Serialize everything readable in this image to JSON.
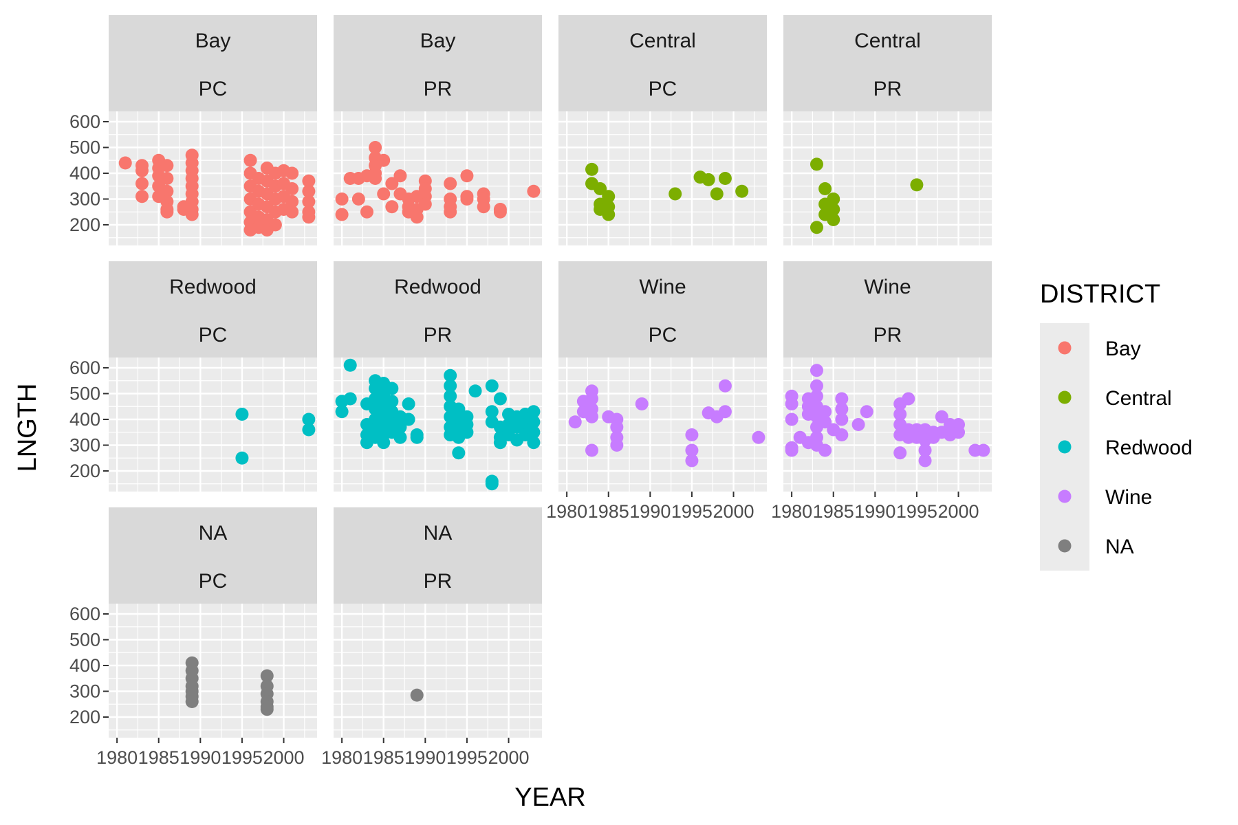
{
  "chart_data": {
    "type": "scatter",
    "facet_layout": "wrap",
    "xlabel": "YEAR",
    "ylabel": "LNGTH",
    "xticks": [
      "1980",
      "1985",
      "1990",
      "1995",
      "2000"
    ],
    "yticks": [
      "200",
      "300",
      "400",
      "500",
      "600"
    ],
    "xlim": [
      1979,
      2004
    ],
    "ylim": [
      120,
      640
    ],
    "grid": true,
    "legend": {
      "title": "DISTRICT",
      "position": "right",
      "entries": [
        {
          "label": "Bay",
          "color": "#F8766D"
        },
        {
          "label": "Central",
          "color": "#7CAE00"
        },
        {
          "label": "Redwood",
          "color": "#00BFC4"
        },
        {
          "label": "Wine",
          "color": "#C77CFF"
        },
        {
          "label": "NA",
          "color": "#7F7F7F"
        }
      ]
    },
    "panels": [
      {
        "district": "Bay",
        "type": "PC",
        "color": "#F8766D",
        "points": [
          [
            1981,
            440
          ],
          [
            1983,
            430
          ],
          [
            1983,
            410
          ],
          [
            1983,
            360
          ],
          [
            1983,
            310
          ],
          [
            1985,
            450
          ],
          [
            1985,
            420
          ],
          [
            1985,
            390
          ],
          [
            1985,
            350
          ],
          [
            1985,
            310
          ],
          [
            1986,
            430
          ],
          [
            1986,
            380
          ],
          [
            1986,
            330
          ],
          [
            1986,
            290
          ],
          [
            1986,
            260
          ],
          [
            1986,
            250
          ],
          [
            1988,
            270
          ],
          [
            1988,
            260
          ],
          [
            1989,
            470
          ],
          [
            1989,
            440
          ],
          [
            1989,
            410
          ],
          [
            1989,
            380
          ],
          [
            1989,
            350
          ],
          [
            1989,
            320
          ],
          [
            1989,
            290
          ],
          [
            1989,
            260
          ],
          [
            1989,
            240
          ],
          [
            1996,
            450
          ],
          [
            1996,
            400
          ],
          [
            1996,
            350
          ],
          [
            1996,
            300
          ],
          [
            1996,
            250
          ],
          [
            1996,
            210
          ],
          [
            1996,
            180
          ],
          [
            1997,
            380
          ],
          [
            1997,
            330
          ],
          [
            1997,
            280
          ],
          [
            1997,
            230
          ],
          [
            1997,
            190
          ],
          [
            1998,
            420
          ],
          [
            1998,
            370
          ],
          [
            1998,
            320
          ],
          [
            1998,
            270
          ],
          [
            1998,
            220
          ],
          [
            1998,
            180
          ],
          [
            1999,
            400
          ],
          [
            1999,
            350
          ],
          [
            1999,
            300
          ],
          [
            1999,
            250
          ],
          [
            1999,
            200
          ],
          [
            2000,
            410
          ],
          [
            2000,
            360
          ],
          [
            2000,
            310
          ],
          [
            2000,
            260
          ],
          [
            2001,
            400
          ],
          [
            2001,
            340
          ],
          [
            2001,
            290
          ],
          [
            2001,
            250
          ],
          [
            2003,
            370
          ],
          [
            2003,
            330
          ],
          [
            2003,
            290
          ],
          [
            2003,
            250
          ],
          [
            2003,
            230
          ]
        ]
      },
      {
        "district": "Bay",
        "type": "PR",
        "color": "#F8766D",
        "points": [
          [
            1980,
            300
          ],
          [
            1980,
            240
          ],
          [
            1981,
            380
          ],
          [
            1982,
            300
          ],
          [
            1982,
            380
          ],
          [
            1983,
            250
          ],
          [
            1983,
            390
          ],
          [
            1984,
            500
          ],
          [
            1984,
            460
          ],
          [
            1984,
            430
          ],
          [
            1984,
            400
          ],
          [
            1984,
            380
          ],
          [
            1985,
            320
          ],
          [
            1985,
            450
          ],
          [
            1986,
            360
          ],
          [
            1986,
            270
          ],
          [
            1987,
            320
          ],
          [
            1987,
            390
          ],
          [
            1988,
            300
          ],
          [
            1988,
            270
          ],
          [
            1988,
            250
          ],
          [
            1989,
            310
          ],
          [
            1989,
            260
          ],
          [
            1989,
            230
          ],
          [
            1990,
            370
          ],
          [
            1990,
            340
          ],
          [
            1990,
            310
          ],
          [
            1990,
            280
          ],
          [
            1993,
            360
          ],
          [
            1993,
            300
          ],
          [
            1993,
            270
          ],
          [
            1993,
            250
          ],
          [
            1995,
            390
          ],
          [
            1995,
            310
          ],
          [
            1995,
            300
          ],
          [
            1997,
            320
          ],
          [
            1997,
            300
          ],
          [
            1997,
            270
          ],
          [
            1999,
            260
          ],
          [
            1999,
            250
          ],
          [
            2003,
            330
          ]
        ]
      },
      {
        "district": "Central",
        "type": "PC",
        "color": "#7CAE00",
        "points": [
          [
            1983,
            415
          ],
          [
            1983,
            360
          ],
          [
            1984,
            340
          ],
          [
            1984,
            280
          ],
          [
            1984,
            260
          ],
          [
            1985,
            310
          ],
          [
            1985,
            270
          ],
          [
            1985,
            240
          ],
          [
            1993,
            320
          ],
          [
            1996,
            385
          ],
          [
            1997,
            375
          ],
          [
            1998,
            320
          ],
          [
            1999,
            380
          ],
          [
            2001,
            330
          ]
        ]
      },
      {
        "district": "Central",
        "type": "PR",
        "color": "#7CAE00",
        "points": [
          [
            1983,
            435
          ],
          [
            1983,
            190
          ],
          [
            1984,
            340
          ],
          [
            1984,
            280
          ],
          [
            1984,
            240
          ],
          [
            1985,
            300
          ],
          [
            1985,
            260
          ],
          [
            1985,
            220
          ],
          [
            1995,
            355
          ]
        ]
      },
      {
        "district": "Redwood",
        "type": "PC",
        "color": "#00BFC4",
        "points": [
          [
            1995,
            420
          ],
          [
            1995,
            250
          ],
          [
            2003,
            400
          ],
          [
            2003,
            360
          ]
        ]
      },
      {
        "district": "Redwood",
        "type": "PR",
        "color": "#00BFC4",
        "points": [
          [
            1980,
            470
          ],
          [
            1980,
            430
          ],
          [
            1981,
            480
          ],
          [
            1981,
            610
          ],
          [
            1983,
            460
          ],
          [
            1983,
            380
          ],
          [
            1983,
            340
          ],
          [
            1983,
            310
          ],
          [
            1984,
            550
          ],
          [
            1984,
            520
          ],
          [
            1984,
            480
          ],
          [
            1984,
            440
          ],
          [
            1984,
            400
          ],
          [
            1984,
            360
          ],
          [
            1984,
            330
          ],
          [
            1985,
            540
          ],
          [
            1985,
            500
          ],
          [
            1985,
            460
          ],
          [
            1985,
            420
          ],
          [
            1985,
            380
          ],
          [
            1985,
            340
          ],
          [
            1985,
            310
          ],
          [
            1986,
            520
          ],
          [
            1986,
            470
          ],
          [
            1986,
            430
          ],
          [
            1986,
            390
          ],
          [
            1986,
            350
          ],
          [
            1987,
            410
          ],
          [
            1987,
            370
          ],
          [
            1987,
            330
          ],
          [
            1988,
            460
          ],
          [
            1988,
            400
          ],
          [
            1989,
            340
          ],
          [
            1989,
            330
          ],
          [
            1993,
            570
          ],
          [
            1993,
            530
          ],
          [
            1993,
            490
          ],
          [
            1993,
            450
          ],
          [
            1993,
            410
          ],
          [
            1993,
            370
          ],
          [
            1993,
            340
          ],
          [
            1994,
            440
          ],
          [
            1994,
            400
          ],
          [
            1994,
            360
          ],
          [
            1994,
            330
          ],
          [
            1994,
            270
          ],
          [
            1995,
            410
          ],
          [
            1995,
            380
          ],
          [
            1995,
            350
          ],
          [
            1996,
            510
          ],
          [
            1998,
            530
          ],
          [
            1998,
            430
          ],
          [
            1998,
            390
          ],
          [
            1998,
            160
          ],
          [
            1998,
            150
          ],
          [
            1999,
            480
          ],
          [
            1999,
            370
          ],
          [
            1999,
            330
          ],
          [
            1999,
            310
          ],
          [
            2000,
            420
          ],
          [
            2000,
            380
          ],
          [
            2000,
            340
          ],
          [
            2001,
            410
          ],
          [
            2001,
            370
          ],
          [
            2001,
            320
          ],
          [
            2002,
            420
          ],
          [
            2002,
            380
          ],
          [
            2002,
            340
          ],
          [
            2003,
            430
          ],
          [
            2003,
            390
          ],
          [
            2003,
            350
          ],
          [
            2003,
            310
          ]
        ]
      },
      {
        "district": "Wine",
        "type": "PC",
        "color": "#C77CFF",
        "points": [
          [
            1981,
            390
          ],
          [
            1982,
            470
          ],
          [
            1982,
            430
          ],
          [
            1983,
            510
          ],
          [
            1983,
            480
          ],
          [
            1983,
            440
          ],
          [
            1983,
            410
          ],
          [
            1983,
            280
          ],
          [
            1985,
            410
          ],
          [
            1986,
            400
          ],
          [
            1986,
            370
          ],
          [
            1986,
            330
          ],
          [
            1986,
            300
          ],
          [
            1989,
            460
          ],
          [
            1995,
            340
          ],
          [
            1995,
            280
          ],
          [
            1995,
            240
          ],
          [
            1997,
            425
          ],
          [
            1998,
            410
          ],
          [
            1999,
            530
          ],
          [
            1999,
            430
          ],
          [
            2003,
            330
          ]
        ]
      },
      {
        "district": "Wine",
        "type": "PR",
        "color": "#C77CFF",
        "points": [
          [
            1980,
            490
          ],
          [
            1980,
            460
          ],
          [
            1980,
            400
          ],
          [
            1980,
            290
          ],
          [
            1980,
            280
          ],
          [
            1981,
            330
          ],
          [
            1982,
            480
          ],
          [
            1982,
            450
          ],
          [
            1982,
            420
          ],
          [
            1982,
            310
          ],
          [
            1983,
            590
          ],
          [
            1983,
            530
          ],
          [
            1983,
            490
          ],
          [
            1983,
            450
          ],
          [
            1983,
            410
          ],
          [
            1983,
            370
          ],
          [
            1983,
            330
          ],
          [
            1983,
            300
          ],
          [
            1984,
            430
          ],
          [
            1984,
            390
          ],
          [
            1984,
            280
          ],
          [
            1985,
            360
          ],
          [
            1986,
            480
          ],
          [
            1986,
            440
          ],
          [
            1986,
            400
          ],
          [
            1986,
            340
          ],
          [
            1988,
            380
          ],
          [
            1989,
            430
          ],
          [
            1993,
            460
          ],
          [
            1993,
            420
          ],
          [
            1993,
            380
          ],
          [
            1993,
            340
          ],
          [
            1993,
            270
          ],
          [
            1994,
            480
          ],
          [
            1994,
            360
          ],
          [
            1994,
            330
          ],
          [
            1995,
            360
          ],
          [
            1995,
            330
          ],
          [
            1996,
            360
          ],
          [
            1996,
            320
          ],
          [
            1996,
            280
          ],
          [
            1996,
            240
          ],
          [
            1997,
            350
          ],
          [
            1997,
            330
          ],
          [
            1998,
            410
          ],
          [
            1998,
            350
          ],
          [
            1999,
            380
          ],
          [
            1999,
            340
          ],
          [
            2000,
            380
          ],
          [
            2000,
            350
          ],
          [
            2002,
            280
          ],
          [
            2003,
            280
          ]
        ]
      },
      {
        "district": "NA",
        "type": "PC",
        "color": "#7F7F7F",
        "points": [
          [
            1989,
            410
          ],
          [
            1989,
            380
          ],
          [
            1989,
            350
          ],
          [
            1989,
            320
          ],
          [
            1989,
            300
          ],
          [
            1989,
            280
          ],
          [
            1989,
            260
          ],
          [
            1998,
            360
          ],
          [
            1998,
            320
          ],
          [
            1998,
            290
          ],
          [
            1998,
            260
          ],
          [
            1998,
            240
          ],
          [
            1998,
            230
          ]
        ]
      },
      {
        "district": "NA",
        "type": "PR",
        "color": "#7F7F7F",
        "points": [
          [
            1989,
            285
          ]
        ]
      }
    ]
  }
}
